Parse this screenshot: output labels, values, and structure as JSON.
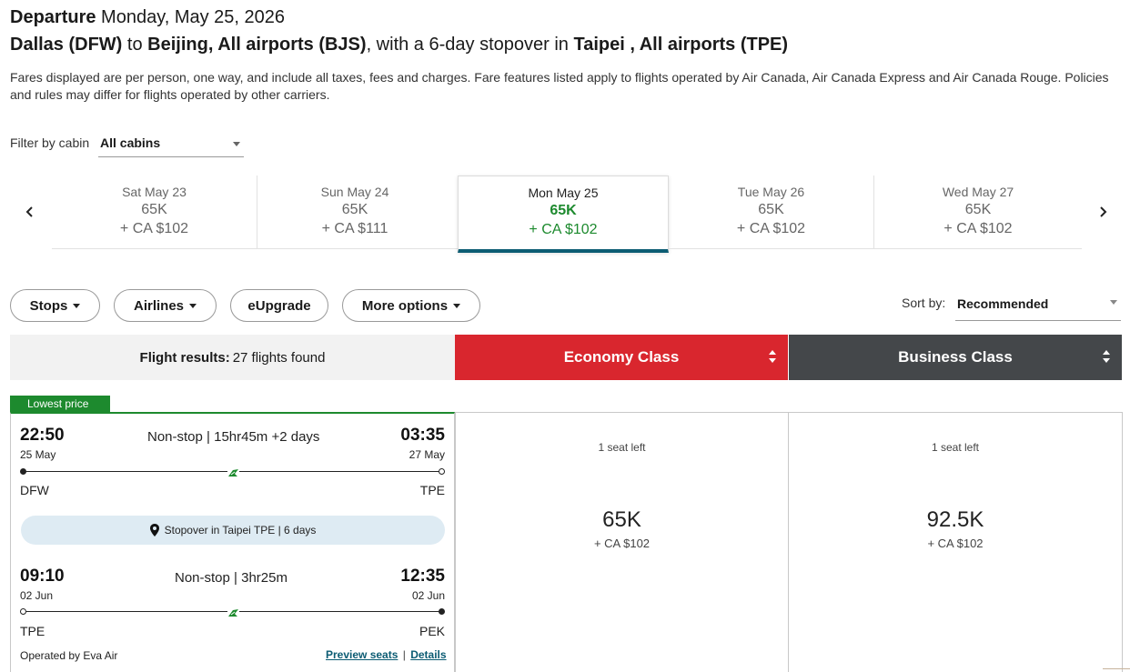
{
  "header": {
    "departure_label": "Departure",
    "departure_date": "Monday, May 25, 2026",
    "origin": "Dallas (DFW)",
    "to_word": "to",
    "destination": "Beijing, All airports (BJS)",
    "stopover_text": ", with a 6-day stopover in",
    "stopover_city": "Taipei , All airports (TPE)",
    "disclaimer": "Fares displayed are per person, one way, and include all taxes, fees and charges. Fare features listed apply to flights operated by Air Canada, Air Canada Express and Air Canada Rouge. Policies and rules may differ for flights operated by other carriers."
  },
  "filter": {
    "label": "Filter by cabin",
    "value": "All cabins"
  },
  "dates": [
    {
      "day": "Sat May 23",
      "points": "65K",
      "cash": "+ CA $102"
    },
    {
      "day": "Sun May 24",
      "points": "65K",
      "cash": "+ CA $111"
    },
    {
      "day": "Mon May 25",
      "points": "65K",
      "cash": "+ CA $102"
    },
    {
      "day": "Tue May 26",
      "points": "65K",
      "cash": "+ CA $102"
    },
    {
      "day": "Wed May 27",
      "points": "65K",
      "cash": "+ CA $102"
    }
  ],
  "pills": {
    "stops": "Stops",
    "airlines": "Airlines",
    "eupgrade": "eUpgrade",
    "more": "More options"
  },
  "sort": {
    "label": "Sort by:",
    "value": "Recommended"
  },
  "results": {
    "label": "Flight results:",
    "count": "27 flights found"
  },
  "cabins": {
    "economy": "Economy Class",
    "business": "Business Class",
    "economy_color": "#d9262e",
    "business_color": "#44474a"
  },
  "flight": {
    "badge": "Lowest price",
    "seg1": {
      "dep_time": "22:50",
      "dep_date": "25 May",
      "info": "Non-stop | 15hr45m +2 days",
      "arr_time": "03:35",
      "arr_date": "27 May",
      "from": "DFW",
      "to": "TPE"
    },
    "stopover": "Stopover in Taipei TPE | 6 days",
    "seg2": {
      "dep_time": "09:10",
      "dep_date": "02 Jun",
      "info": "Non-stop | 3hr25m",
      "arr_time": "12:35",
      "arr_date": "02 Jun",
      "from": "TPE",
      "to": "PEK"
    },
    "operated_by": "Operated by Eva Air",
    "preview_seats": "Preview seats",
    "separator": "|",
    "details": "Details"
  },
  "fares": {
    "economy": {
      "seats": "1 seat left",
      "points": "65K",
      "cash": "+ CA $102"
    },
    "business": {
      "seats": "1 seat left",
      "points": "92.5K",
      "cash": "+ CA $102"
    }
  }
}
